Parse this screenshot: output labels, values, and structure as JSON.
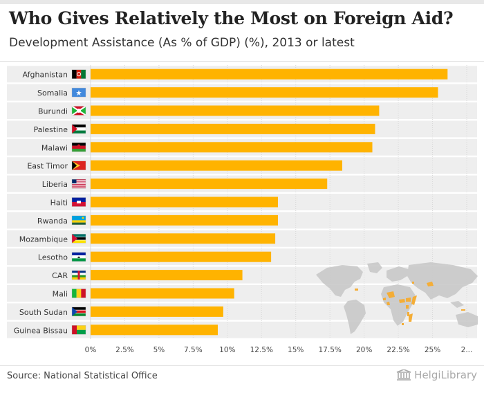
{
  "title": "Who Gives Relatively the Most on Foreign Aid?",
  "subtitle": "Development Assistance (As % of GDP) (%), 2013 or latest",
  "source": "Source: National Statistical Office",
  "brand": "HelgiLibrary",
  "colors": {
    "bar": "#FFB300",
    "row_band": "#EEEEEE",
    "map_land": "#C9C9C9",
    "map_highlight": "#F5A623"
  },
  "chart_data": {
    "type": "bar",
    "orientation": "horizontal",
    "title": "Who Gives Relatively the Most on Foreign Aid?",
    "subtitle": "Development Assistance (As % of GDP) (%), 2013 or latest",
    "xlabel": "",
    "ylabel": "",
    "xlim": [
      0,
      27.5
    ],
    "grid": true,
    "categories": [
      "Afghanistan",
      "Somalia",
      "Burundi",
      "Palestine",
      "Malawi",
      "East Timor",
      "Liberia",
      "Haiti",
      "Rwanda",
      "Mozambique",
      "Lesotho",
      "CAR",
      "Mali",
      "South Sudan",
      "Guinea Bissau"
    ],
    "values": [
      26.1,
      25.4,
      21.1,
      20.8,
      20.6,
      18.4,
      17.3,
      13.7,
      13.7,
      13.5,
      13.2,
      11.1,
      10.5,
      9.7,
      9.3
    ],
    "tick_labels": [
      "0%",
      "2.5%",
      "5%",
      "7.5%",
      "10%",
      "12.5%",
      "15%",
      "17.5%",
      "20%",
      "22.5%",
      "25%",
      "2..."
    ],
    "flags": [
      "flag-afghanistan-icon",
      "flag-somalia-icon",
      "flag-burundi-icon",
      "flag-palestine-icon",
      "flag-malawi-icon",
      "flag-east-timor-icon",
      "flag-liberia-icon",
      "flag-haiti-icon",
      "flag-rwanda-icon",
      "flag-mozambique-icon",
      "flag-lesotho-icon",
      "flag-car-icon",
      "flag-mali-icon",
      "flag-south-sudan-icon",
      "flag-guinea-bissau-icon"
    ]
  }
}
